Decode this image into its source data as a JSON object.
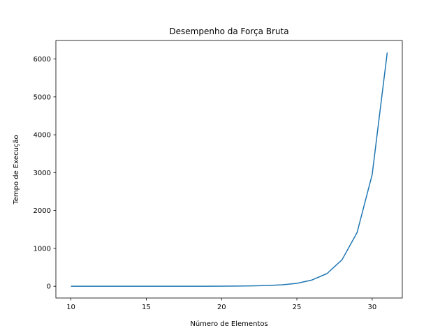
{
  "chart_data": {
    "type": "line",
    "title": "Desempenho da Força Bruta",
    "xlabel": "Número de Elementos",
    "ylabel": "Tempo de Execução",
    "xlim": [
      9,
      32
    ],
    "ylim": [
      -310,
      6490
    ],
    "x_ticks": [
      10,
      15,
      20,
      25,
      30
    ],
    "y_ticks": [
      0,
      1000,
      2000,
      3000,
      4000,
      5000,
      6000
    ],
    "grid": false,
    "series": [
      {
        "color": "#1f77b4",
        "x": [
          10,
          11,
          12,
          13,
          14,
          15,
          16,
          17,
          18,
          19,
          20,
          21,
          22,
          23,
          24,
          25,
          26,
          27,
          28,
          29,
          30,
          31
        ],
        "y": [
          0,
          0,
          0,
          0,
          0,
          0,
          0,
          1,
          1,
          2,
          3,
          6,
          11,
          19,
          37,
          77,
          165,
          335,
          700,
          1420,
          2950,
          6170
        ]
      }
    ]
  }
}
